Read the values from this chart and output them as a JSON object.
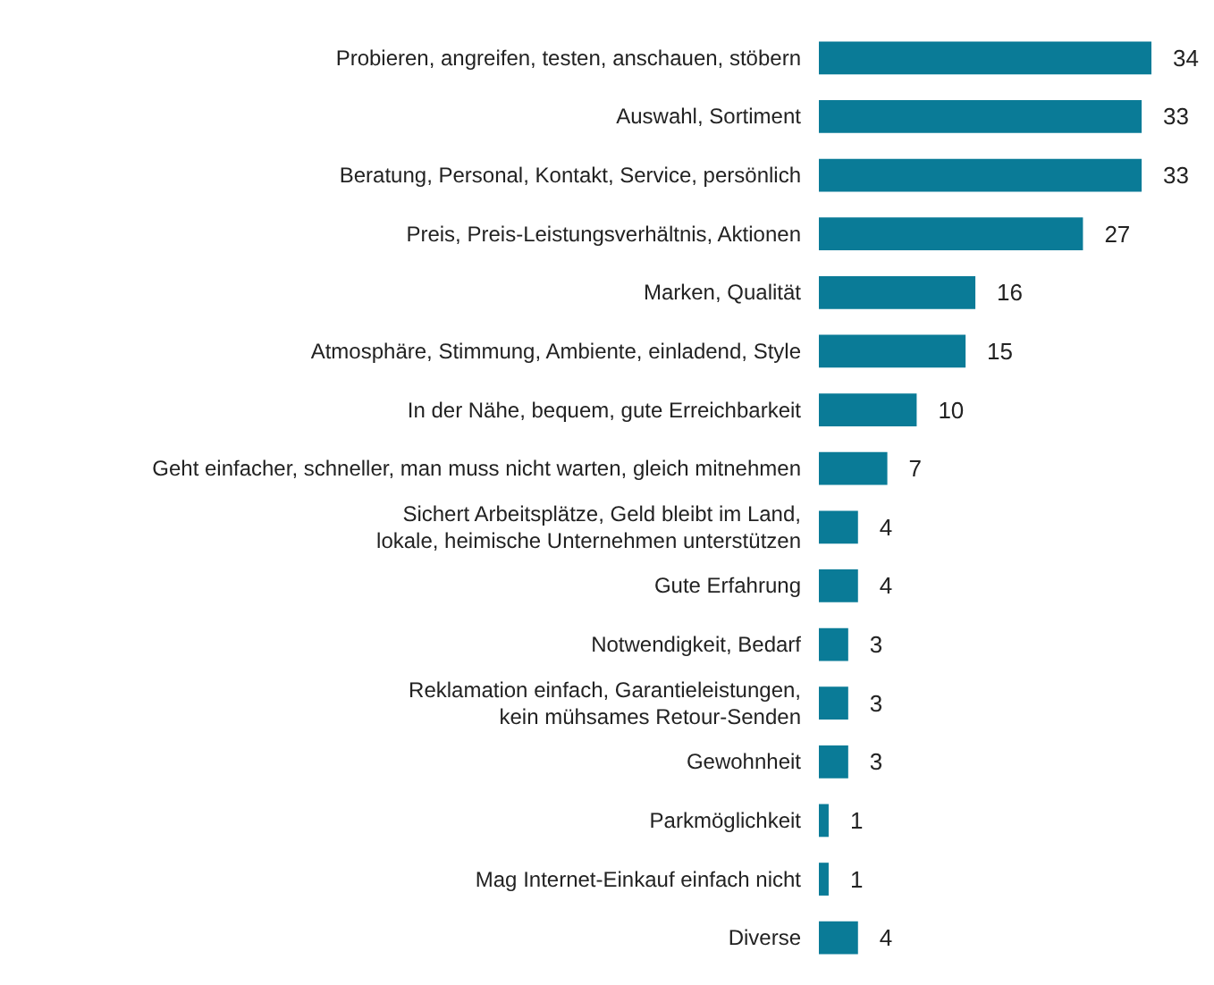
{
  "chart_data": {
    "type": "bar",
    "orientation": "horizontal",
    "data_labels": true,
    "color": "#0a7b97",
    "categories": [
      "Probieren, angreifen, testen, anschauen, stöbern",
      "Auswahl, Sortiment",
      "Beratung, Personal, Kontakt, Service, persönlich",
      "Preis, Preis-Leistungsverhältnis, Aktionen",
      "Marken, Qualität",
      "Atmosphäre, Stimmung, Ambiente, einladend, Style",
      "In der Nähe, bequem, gute Erreichbarkeit",
      "Geht einfacher, schneller, man muss nicht warten, gleich mitnehmen",
      "Sichert Arbeitsplätze, Geld bleibt im Land,\nlokale, heimische Unternehmen unterstützen",
      "Gute Erfahrung",
      "Notwendigkeit, Bedarf",
      "Reklamation einfach, Garantieleistungen,\nkein mühsames Retour-Senden",
      "Gewohnheit",
      "Parkmöglichkeit",
      "Mag Internet-Einkauf einfach nicht",
      "Diverse"
    ],
    "values": [
      34,
      33,
      33,
      27,
      16,
      15,
      10,
      7,
      4,
      4,
      3,
      3,
      3,
      1,
      1,
      4
    ]
  }
}
